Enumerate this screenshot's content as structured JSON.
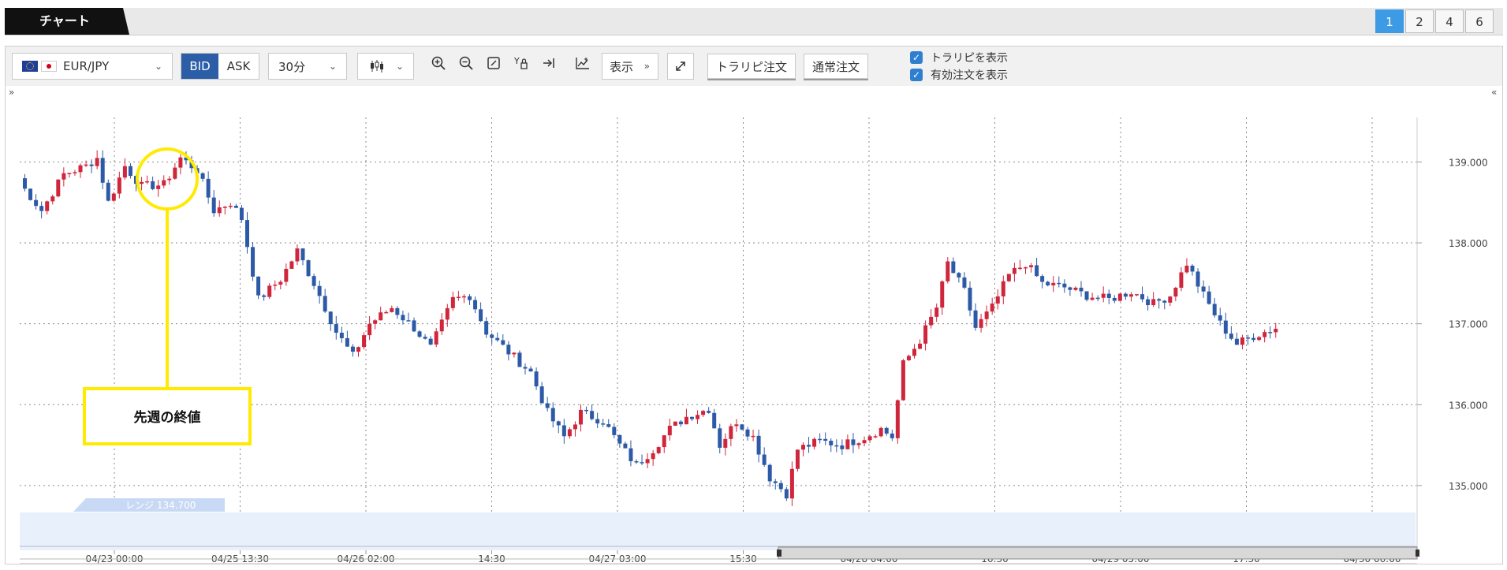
{
  "header": {
    "tab_label": "チャート",
    "layout_buttons": [
      "1",
      "2",
      "4",
      "6"
    ],
    "active_layout": "1"
  },
  "toolbar": {
    "symbol": "EUR/JPY",
    "bid_label": "BID",
    "ask_label": "ASK",
    "period": "30分",
    "display_label": "表示",
    "trailing_order_label": "トラリピ注文",
    "normal_order_label": "通常注文",
    "show_trailing_label": "トラリピを表示",
    "show_active_orders_label": "有効注文を表示",
    "icons": [
      "candlestick-icon",
      "zoom-in-icon",
      "zoom-out-icon",
      "fit-icon",
      "y-axis-icon",
      "scroll-end-icon",
      "indicator-icon",
      "expand-icon"
    ]
  },
  "annotation": {
    "label": "先週の終値",
    "color": "#ffea00"
  },
  "range_label": "レンジ 134.700",
  "colors": {
    "up": "#d0263c",
    "down": "#2d5aa6",
    "accent": "#3d9be6",
    "range_band": "#e8f0fc"
  },
  "chart_data": {
    "type": "candlestick",
    "x_ticks": [
      "04/23 00:00",
      "04/25 13:30",
      "04/26 02:00",
      "14:30",
      "04/27 03:00",
      "15:30",
      "04/28 04:00",
      "16:30",
      "04/29 05:00",
      "17:30",
      "04/30 06:00"
    ],
    "y_ticks": [
      "139.000",
      "138.000",
      "137.000",
      "136.000",
      "135.000"
    ],
    "ylim": [
      134.2,
      139.55
    ],
    "range_value": 134.7,
    "annotated_close": 138.7,
    "close_path": [
      {
        "x": 0,
        "y": 138.75
      },
      {
        "x": 4,
        "y": 138.4
      },
      {
        "x": 8,
        "y": 138.85
      },
      {
        "x": 12,
        "y": 138.95
      },
      {
        "x": 14,
        "y": 139.05
      },
      {
        "x": 16,
        "y": 138.5
      },
      {
        "x": 19,
        "y": 138.95
      },
      {
        "x": 22,
        "y": 138.7
      },
      {
        "x": 26,
        "y": 138.72
      },
      {
        "x": 29,
        "y": 139.05
      },
      {
        "x": 32,
        "y": 138.9
      },
      {
        "x": 35,
        "y": 138.4
      },
      {
        "x": 38,
        "y": 138.5
      },
      {
        "x": 40,
        "y": 138.3
      },
      {
        "x": 43,
        "y": 137.3
      },
      {
        "x": 47,
        "y": 137.55
      },
      {
        "x": 50,
        "y": 137.9
      },
      {
        "x": 53,
        "y": 137.5
      },
      {
        "x": 57,
        "y": 136.9
      },
      {
        "x": 60,
        "y": 136.6
      },
      {
        "x": 63,
        "y": 137.0
      },
      {
        "x": 67,
        "y": 137.2
      },
      {
        "x": 71,
        "y": 136.95
      },
      {
        "x": 74,
        "y": 136.7
      },
      {
        "x": 78,
        "y": 137.3
      },
      {
        "x": 81,
        "y": 137.35
      },
      {
        "x": 84,
        "y": 136.9
      },
      {
        "x": 88,
        "y": 136.65
      },
      {
        "x": 92,
        "y": 136.4
      },
      {
        "x": 95,
        "y": 135.9
      },
      {
        "x": 98,
        "y": 135.6
      },
      {
        "x": 101,
        "y": 135.9
      },
      {
        "x": 105,
        "y": 135.8
      },
      {
        "x": 108,
        "y": 135.5
      },
      {
        "x": 111,
        "y": 135.25
      },
      {
        "x": 114,
        "y": 135.45
      },
      {
        "x": 117,
        "y": 135.7
      },
      {
        "x": 120,
        "y": 135.85
      },
      {
        "x": 124,
        "y": 135.95
      },
      {
        "x": 126,
        "y": 135.5
      },
      {
        "x": 129,
        "y": 135.8
      },
      {
        "x": 132,
        "y": 135.6
      },
      {
        "x": 135,
        "y": 135.1
      },
      {
        "x": 138,
        "y": 134.9
      },
      {
        "x": 140,
        "y": 135.45
      },
      {
        "x": 144,
        "y": 135.55
      },
      {
        "x": 148,
        "y": 135.5
      },
      {
        "x": 152,
        "y": 135.6
      },
      {
        "x": 155,
        "y": 135.7
      },
      {
        "x": 157,
        "y": 135.6
      },
      {
        "x": 159,
        "y": 136.5
      },
      {
        "x": 162,
        "y": 136.8
      },
      {
        "x": 165,
        "y": 137.2
      },
      {
        "x": 167,
        "y": 137.75
      },
      {
        "x": 170,
        "y": 137.4
      },
      {
        "x": 172,
        "y": 136.95
      },
      {
        "x": 175,
        "y": 137.2
      },
      {
        "x": 178,
        "y": 137.6
      },
      {
        "x": 181,
        "y": 137.75
      },
      {
        "x": 184,
        "y": 137.5
      },
      {
        "x": 188,
        "y": 137.45
      },
      {
        "x": 192,
        "y": 137.35
      },
      {
        "x": 196,
        "y": 137.3
      },
      {
        "x": 200,
        "y": 137.4
      },
      {
        "x": 204,
        "y": 137.25
      },
      {
        "x": 207,
        "y": 137.35
      },
      {
        "x": 210,
        "y": 137.75
      },
      {
        "x": 213,
        "y": 137.35
      },
      {
        "x": 216,
        "y": 137.0
      },
      {
        "x": 219,
        "y": 136.75
      },
      {
        "x": 222,
        "y": 136.85
      },
      {
        "x": 226,
        "y": 136.95
      }
    ]
  }
}
